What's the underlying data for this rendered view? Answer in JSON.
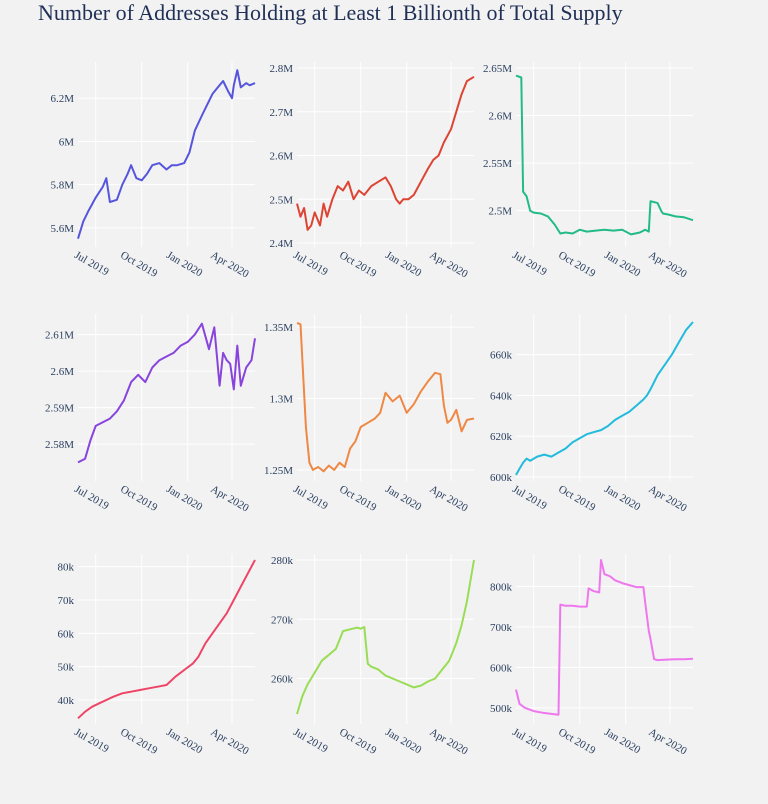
{
  "title": "Number of Addresses Holding at Least 1 Billionth of Total Supply",
  "x_tick_labels": [
    "Jul 2019",
    "Oct 2019",
    "Jan 2020",
    "Apr 2020"
  ],
  "chart_data": [
    {
      "type": "line",
      "color": "#5555dd",
      "ylim": [
        5.53,
        6.34
      ],
      "yunit": "M",
      "yticks": [
        "5.6M",
        "5.8M",
        "6M",
        "6.2M"
      ],
      "ytick_values": [
        5.6,
        5.8,
        6.0,
        6.2
      ],
      "x": [
        0,
        0.03,
        0.06,
        0.1,
        0.14,
        0.16,
        0.18,
        0.22,
        0.25,
        0.28,
        0.3,
        0.33,
        0.36,
        0.39,
        0.42,
        0.46,
        0.5,
        0.53,
        0.56,
        0.6,
        0.63,
        0.66,
        0.7,
        0.73,
        0.76,
        0.79,
        0.82,
        0.85,
        0.87,
        0.88,
        0.9,
        0.92,
        0.95,
        0.97,
        1.0
      ],
      "y": [
        5.55,
        5.63,
        5.68,
        5.74,
        5.79,
        5.83,
        5.72,
        5.73,
        5.8,
        5.85,
        5.89,
        5.83,
        5.82,
        5.85,
        5.89,
        5.9,
        5.87,
        5.89,
        5.89,
        5.9,
        5.95,
        6.05,
        6.12,
        6.17,
        6.22,
        6.25,
        6.28,
        6.23,
        6.2,
        6.26,
        6.33,
        6.25,
        6.27,
        6.26,
        6.27
      ]
    },
    {
      "type": "line",
      "color": "#dd4433",
      "ylim": [
        2.4,
        2.8
      ],
      "yunit": "M",
      "yticks": [
        "2.4M",
        "2.5M",
        "2.6M",
        "2.7M",
        "2.8M"
      ],
      "ytick_values": [
        2.4,
        2.5,
        2.6,
        2.7,
        2.8
      ],
      "x": [
        0,
        0.02,
        0.04,
        0.06,
        0.08,
        0.1,
        0.13,
        0.15,
        0.17,
        0.2,
        0.23,
        0.26,
        0.29,
        0.32,
        0.35,
        0.38,
        0.42,
        0.46,
        0.5,
        0.53,
        0.56,
        0.58,
        0.6,
        0.63,
        0.66,
        0.7,
        0.74,
        0.77,
        0.8,
        0.83,
        0.87,
        0.9,
        0.93,
        0.96,
        1.0
      ],
      "y": [
        2.49,
        2.46,
        2.48,
        2.43,
        2.44,
        2.47,
        2.44,
        2.49,
        2.46,
        2.5,
        2.53,
        2.52,
        2.54,
        2.5,
        2.52,
        2.51,
        2.53,
        2.54,
        2.55,
        2.53,
        2.5,
        2.49,
        2.5,
        2.5,
        2.51,
        2.54,
        2.57,
        2.59,
        2.6,
        2.63,
        2.66,
        2.7,
        2.74,
        2.77,
        2.78
      ]
    },
    {
      "type": "line",
      "color": "#22bb88",
      "ylim": [
        2.466,
        2.65
      ],
      "yunit": "M",
      "yticks": [
        "2.5M",
        "2.55M",
        "2.6M",
        "2.65M"
      ],
      "ytick_values": [
        2.5,
        2.55,
        2.6,
        2.65
      ],
      "x": [
        0,
        0.03,
        0.04,
        0.06,
        0.08,
        0.1,
        0.14,
        0.18,
        0.22,
        0.25,
        0.28,
        0.32,
        0.36,
        0.4,
        0.45,
        0.5,
        0.55,
        0.6,
        0.65,
        0.7,
        0.73,
        0.75,
        0.76,
        0.78,
        0.8,
        0.82,
        0.83,
        0.86,
        0.9,
        0.95,
        1.0
      ],
      "y": [
        2.642,
        2.64,
        2.52,
        2.515,
        2.5,
        2.498,
        2.497,
        2.494,
        2.485,
        2.476,
        2.477,
        2.476,
        2.48,
        2.478,
        2.479,
        2.48,
        2.479,
        2.48,
        2.475,
        2.477,
        2.48,
        2.478,
        2.51,
        2.509,
        2.508,
        2.5,
        2.497,
        2.496,
        2.494,
        2.493,
        2.49
      ]
    },
    {
      "type": "line",
      "color": "#8844dd",
      "ylim": [
        2.571,
        2.614
      ],
      "yunit": "M",
      "yticks": [
        "2.58M",
        "2.59M",
        "2.6M",
        "2.61M"
      ],
      "ytick_values": [
        2.58,
        2.59,
        2.6,
        2.61
      ],
      "x": [
        0,
        0.04,
        0.07,
        0.1,
        0.14,
        0.18,
        0.22,
        0.26,
        0.3,
        0.34,
        0.38,
        0.42,
        0.46,
        0.5,
        0.54,
        0.58,
        0.62,
        0.66,
        0.7,
        0.74,
        0.77,
        0.8,
        0.82,
        0.84,
        0.86,
        0.88,
        0.9,
        0.92,
        0.95,
        0.98,
        1.0
      ],
      "y": [
        2.575,
        2.576,
        2.581,
        2.585,
        2.586,
        2.587,
        2.589,
        2.592,
        2.597,
        2.599,
        2.597,
        2.601,
        2.603,
        2.604,
        2.605,
        2.607,
        2.608,
        2.61,
        2.613,
        2.606,
        2.612,
        2.596,
        2.605,
        2.603,
        2.602,
        2.595,
        2.607,
        2.596,
        2.601,
        2.603,
        2.609
      ]
    },
    {
      "type": "line",
      "color": "#ee8844",
      "ylim": [
        1.245,
        1.355
      ],
      "yunit": "M",
      "yticks": [
        "1.25M",
        "1.3M",
        "1.35M"
      ],
      "ytick_values": [
        1.25,
        1.3,
        1.35
      ],
      "x": [
        0,
        0.02,
        0.05,
        0.07,
        0.09,
        0.12,
        0.15,
        0.18,
        0.21,
        0.24,
        0.27,
        0.3,
        0.33,
        0.36,
        0.4,
        0.44,
        0.47,
        0.5,
        0.54,
        0.58,
        0.62,
        0.66,
        0.7,
        0.74,
        0.78,
        0.81,
        0.83,
        0.85,
        0.87,
        0.9,
        0.93,
        0.96,
        1.0
      ],
      "y": [
        1.353,
        1.352,
        1.28,
        1.255,
        1.25,
        1.252,
        1.249,
        1.253,
        1.25,
        1.255,
        1.252,
        1.265,
        1.27,
        1.28,
        1.283,
        1.286,
        1.29,
        1.304,
        1.298,
        1.302,
        1.29,
        1.296,
        1.305,
        1.312,
        1.318,
        1.317,
        1.295,
        1.283,
        1.285,
        1.292,
        1.277,
        1.285,
        1.286
      ]
    },
    {
      "type": "line",
      "color": "#22bbdd",
      "ylim": [
        600,
        677
      ],
      "yunit": "k",
      "yticks": [
        "600k",
        "620k",
        "640k",
        "660k"
      ],
      "ytick_values": [
        600,
        620,
        640,
        660
      ],
      "x": [
        0,
        0.02,
        0.04,
        0.06,
        0.08,
        0.12,
        0.16,
        0.2,
        0.24,
        0.28,
        0.32,
        0.36,
        0.4,
        0.44,
        0.48,
        0.52,
        0.56,
        0.6,
        0.64,
        0.68,
        0.72,
        0.74,
        0.76,
        0.8,
        0.84,
        0.88,
        0.92,
        0.96,
        1.0
      ],
      "y": [
        601,
        604,
        607,
        609,
        608,
        610,
        611,
        610,
        612,
        614,
        617,
        619,
        621,
        622,
        623,
        625,
        628,
        630,
        632,
        635,
        638,
        640,
        643,
        650,
        655,
        660,
        666,
        672,
        676
      ]
    },
    {
      "type": "line",
      "color": "#ee4466",
      "ylim": [
        34,
        82
      ],
      "yunit": "k",
      "yticks": [
        "40k",
        "50k",
        "60k",
        "70k",
        "80k"
      ],
      "ytick_values": [
        40,
        50,
        60,
        70,
        80
      ],
      "x": [
        0,
        0.04,
        0.08,
        0.12,
        0.16,
        0.2,
        0.25,
        0.3,
        0.35,
        0.4,
        0.45,
        0.5,
        0.55,
        0.6,
        0.65,
        0.68,
        0.72,
        0.76,
        0.8,
        0.84,
        0.88,
        0.92,
        0.96,
        1.0
      ],
      "y": [
        34.5,
        36.5,
        38,
        39,
        40,
        41,
        42,
        42.5,
        43,
        43.5,
        44,
        44.5,
        47,
        49,
        51,
        53,
        57,
        60,
        63,
        66,
        70,
        74,
        78,
        82
      ]
    },
    {
      "type": "line",
      "color": "#99dd55",
      "ylim": [
        253,
        280
      ],
      "yunit": "k",
      "yticks": [
        "260k",
        "270k",
        "280k"
      ],
      "ytick_values": [
        260,
        270,
        280
      ],
      "x": [
        0,
        0.03,
        0.06,
        0.1,
        0.14,
        0.18,
        0.22,
        0.26,
        0.3,
        0.34,
        0.36,
        0.38,
        0.4,
        0.42,
        0.46,
        0.5,
        0.54,
        0.58,
        0.62,
        0.66,
        0.7,
        0.74,
        0.78,
        0.82,
        0.86,
        0.9,
        0.93,
        0.96,
        1.0
      ],
      "y": [
        254,
        257,
        259,
        261,
        263,
        264,
        265,
        268,
        268.3,
        268.6,
        268.4,
        268.7,
        262.5,
        262,
        261.5,
        260.5,
        260,
        259.5,
        259,
        258.5,
        258.8,
        259.5,
        260,
        261.5,
        263,
        266,
        269,
        273,
        280
      ]
    },
    {
      "type": "line",
      "color": "#ee77ee",
      "ylim": [
        470,
        865
      ],
      "yunit": "k",
      "yticks": [
        "500k",
        "600k",
        "700k",
        "800k"
      ],
      "ytick_values": [
        500,
        600,
        700,
        800
      ],
      "x": [
        0,
        0.02,
        0.05,
        0.1,
        0.15,
        0.2,
        0.24,
        0.25,
        0.28,
        0.32,
        0.36,
        0.4,
        0.41,
        0.44,
        0.47,
        0.48,
        0.5,
        0.53,
        0.56,
        0.6,
        0.64,
        0.68,
        0.72,
        0.73,
        0.75,
        0.76,
        0.78,
        0.8,
        0.85,
        0.9,
        0.95,
        1.0
      ],
      "y": [
        545,
        510,
        500,
        492,
        488,
        485,
        483,
        755,
        752,
        752,
        750,
        750,
        795,
        788,
        785,
        865,
        830,
        825,
        815,
        808,
        803,
        798,
        798,
        760,
        690,
        670,
        620,
        618,
        619,
        620,
        620,
        621
      ]
    }
  ]
}
